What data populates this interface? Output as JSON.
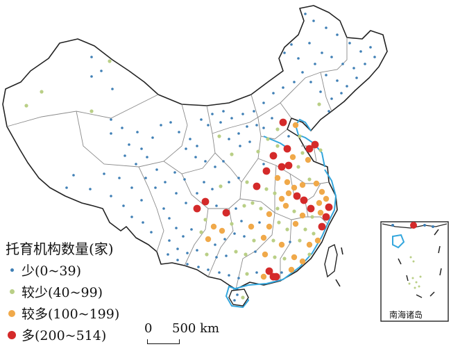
{
  "legend": {
    "title": "托育机构数量(家)",
    "items": [
      {
        "label": "少(0~39)",
        "color": "#3f7fb5",
        "size": "small"
      },
      {
        "label": "较少(40~99)",
        "color": "#b9cf86",
        "size": "medium"
      },
      {
        "label": "较多(100~199)",
        "color": "#f0a94a",
        "size": "large"
      },
      {
        "label": "多(200~514)",
        "color": "#d42a2a",
        "size": "largest"
      }
    ]
  },
  "scale_bar": {
    "zero": "0",
    "end": "500 km"
  },
  "inset": {
    "label": "南海诸岛"
  },
  "colors": {
    "boundary": "#8a8a8a",
    "outline": "#222222",
    "water": "#33a6dd",
    "low": "#3f7fb5",
    "mid_low": "#b9cf86",
    "mid_high": "#f0a94a",
    "high": "#d42a2a"
  }
}
